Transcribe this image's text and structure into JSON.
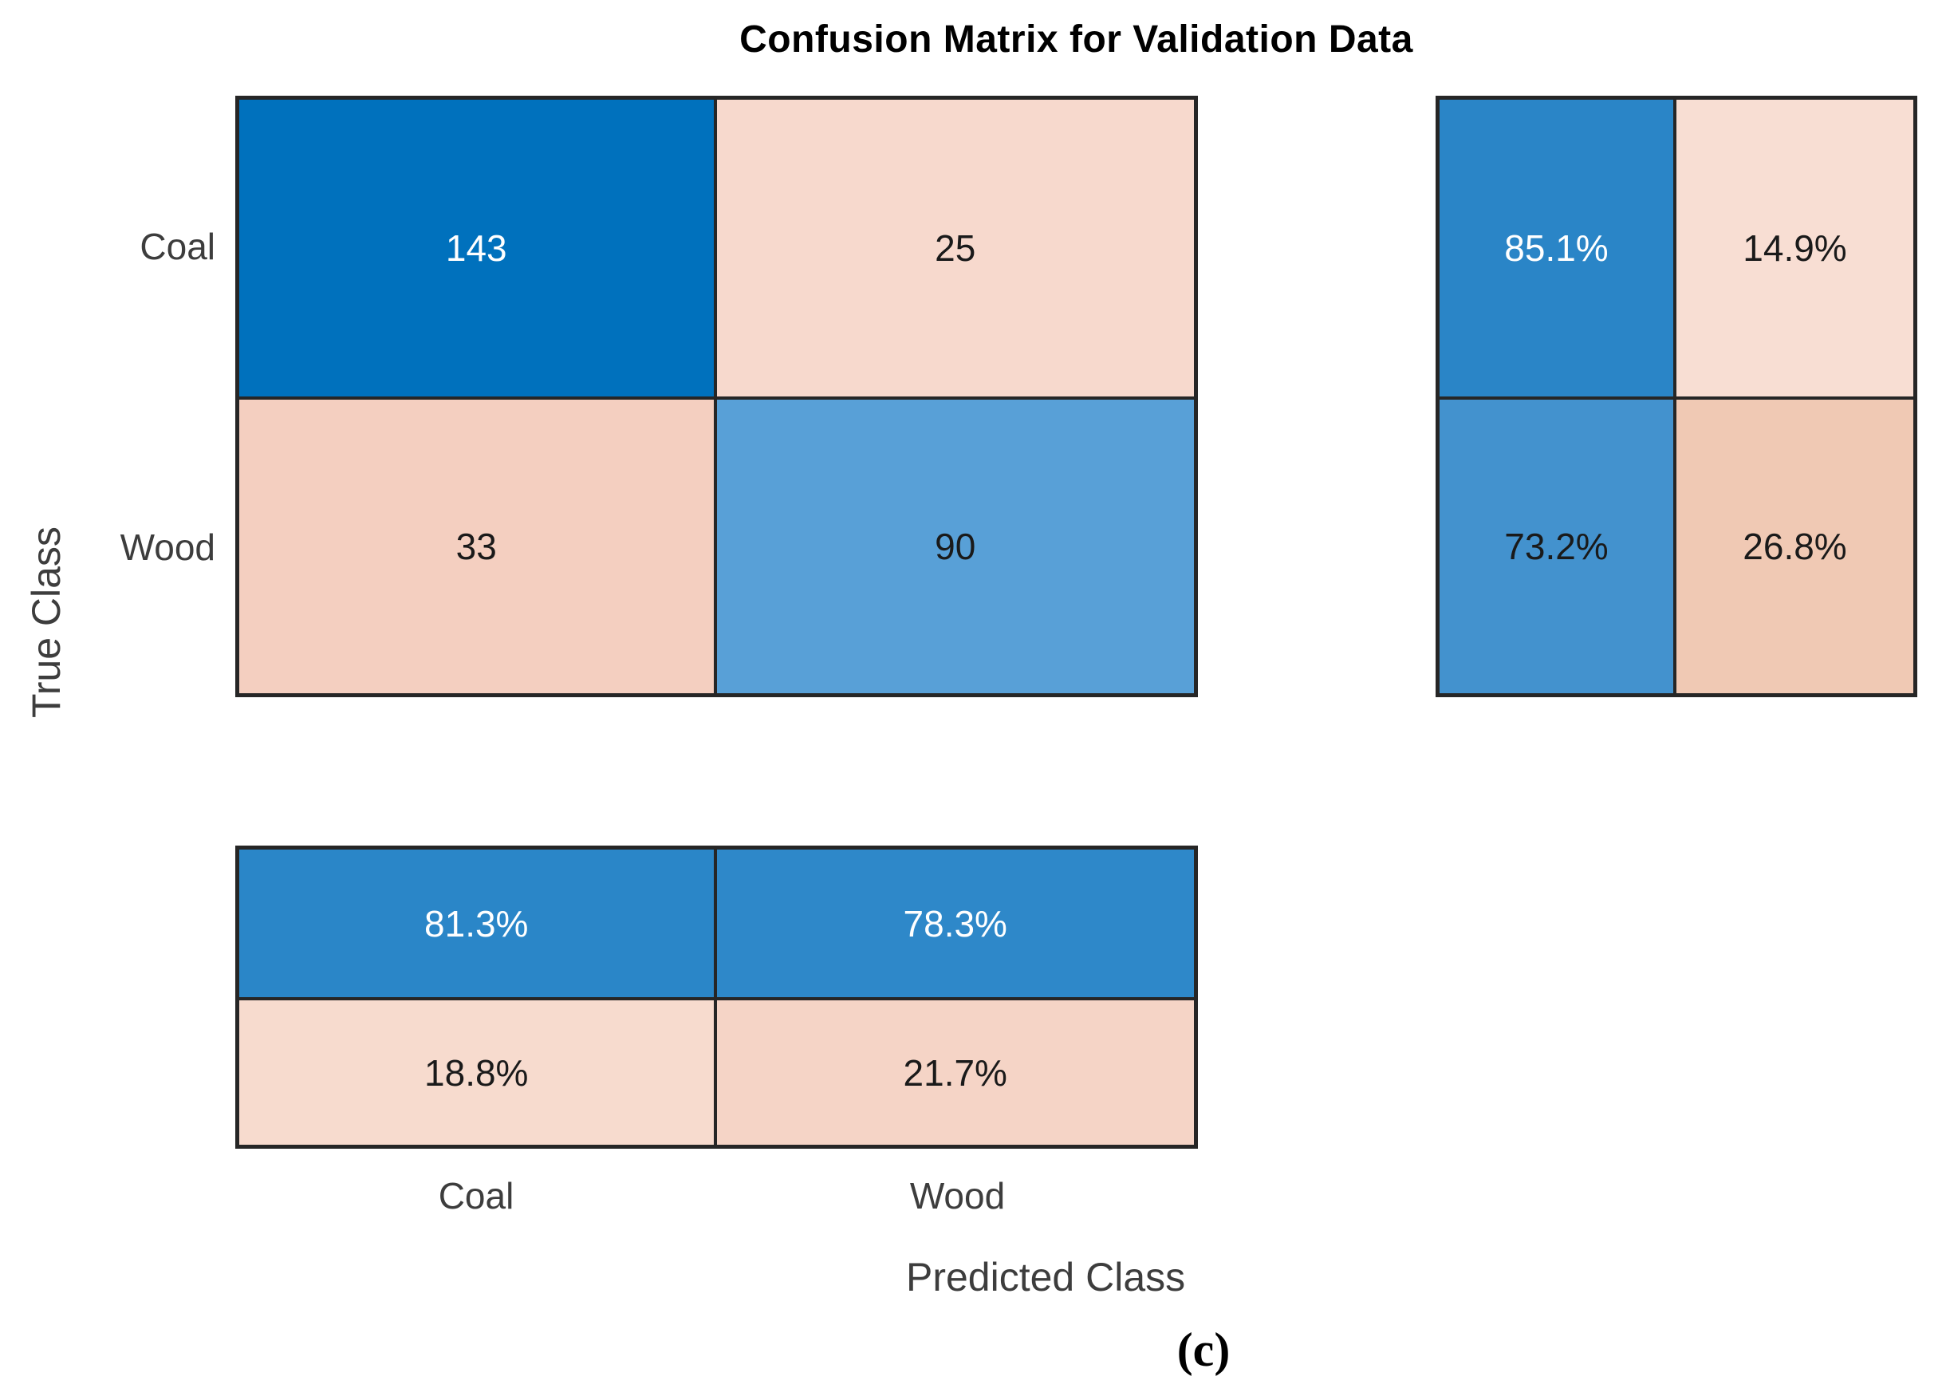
{
  "figure": {
    "title": "Confusion Matrix for Validation Data",
    "ylabel": "True Class",
    "xlabel": "Predicted Class",
    "caption": "(c)",
    "row_tick_labels": [
      "Coal",
      "Wood"
    ],
    "col_tick_labels": [
      "Coal",
      "Wood"
    ]
  },
  "chart_data": {
    "type": "heatmap",
    "subtype": "confusion_matrix",
    "title": "Confusion Matrix for Validation Data",
    "xlabel": "Predicted Class",
    "ylabel": "True Class",
    "classes": [
      "Coal",
      "Wood"
    ],
    "counts": [
      [
        143,
        25
      ],
      [
        33,
        90
      ]
    ],
    "row_summary_pct": [
      [
        85.1,
        14.9
      ],
      [
        73.2,
        26.8
      ]
    ],
    "column_summary_pct": [
      [
        81.3,
        78.3
      ],
      [
        18.8,
        21.7
      ]
    ],
    "legend": "none",
    "grid": "off",
    "caption": "(c)"
  },
  "matrices": {
    "main": {
      "cells": [
        {
          "label": "143",
          "bg": "#0071bd",
          "fg": "#ffffff"
        },
        {
          "label": "25",
          "bg": "#f7d9cd",
          "fg": "#1a1a1a"
        },
        {
          "label": "33",
          "bg": "#f4cfc0",
          "fg": "#1a1a1a"
        },
        {
          "label": "90",
          "bg": "#58a0d7",
          "fg": "#1a1a1a"
        }
      ]
    },
    "row_summary": {
      "cells": [
        {
          "label": "85.1%",
          "bg": "#2a85c7",
          "fg": "#ffffff"
        },
        {
          "label": "14.9%",
          "bg": "#f8ded3",
          "fg": "#1a1a1a"
        },
        {
          "label": "73.2%",
          "bg": "#4392ce",
          "fg": "#1a1a1a"
        },
        {
          "label": "26.8%",
          "bg": "#f0c9b4",
          "fg": "#1a1a1a"
        }
      ]
    },
    "col_summary": {
      "cells": [
        {
          "label": "81.3%",
          "bg": "#2a86c8",
          "fg": "#ffffff"
        },
        {
          "label": "78.3%",
          "bg": "#2e88c9",
          "fg": "#ffffff"
        },
        {
          "label": "18.8%",
          "bg": "#f7dbce",
          "fg": "#1a1a1a"
        },
        {
          "label": "21.7%",
          "bg": "#f5d4c6",
          "fg": "#1a1a1a"
        }
      ]
    }
  },
  "colors": {
    "border": "#262626",
    "label_text": "#3d3d3d",
    "title_text": "#000000",
    "background": "#ffffff",
    "diagonal_blue": "#0071bd",
    "off_diagonal_pink": "#f7d9cd"
  }
}
